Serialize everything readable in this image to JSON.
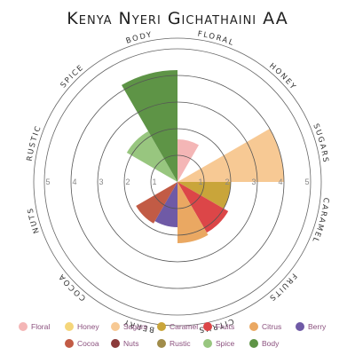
{
  "chart_data": {
    "type": "polar-area",
    "title": "Kenya Nyeri Gichathaini AA",
    "categories": [
      "Floral",
      "Honey",
      "Sugars",
      "Caramel",
      "Fruits",
      "Citrus",
      "Berry",
      "Cocoa",
      "Nuts",
      "Rustic",
      "Spice",
      "Body"
    ],
    "values": [
      1.6,
      0,
      4,
      2,
      2.2,
      2.3,
      1.7,
      1.8,
      0,
      0,
      2.2,
      4.2
    ],
    "colors": [
      "#f4b6b6",
      "#f5d67a",
      "#f7c994",
      "#c9a53a",
      "#dc4648",
      "#eaa862",
      "#6f5aa6",
      "#c25b45",
      "#8b3a3a",
      "#a08c4a",
      "#98c67f",
      "#5e9446"
    ],
    "rlim": [
      0,
      5
    ],
    "rticks": [
      1,
      2,
      3,
      4,
      5
    ]
  }
}
